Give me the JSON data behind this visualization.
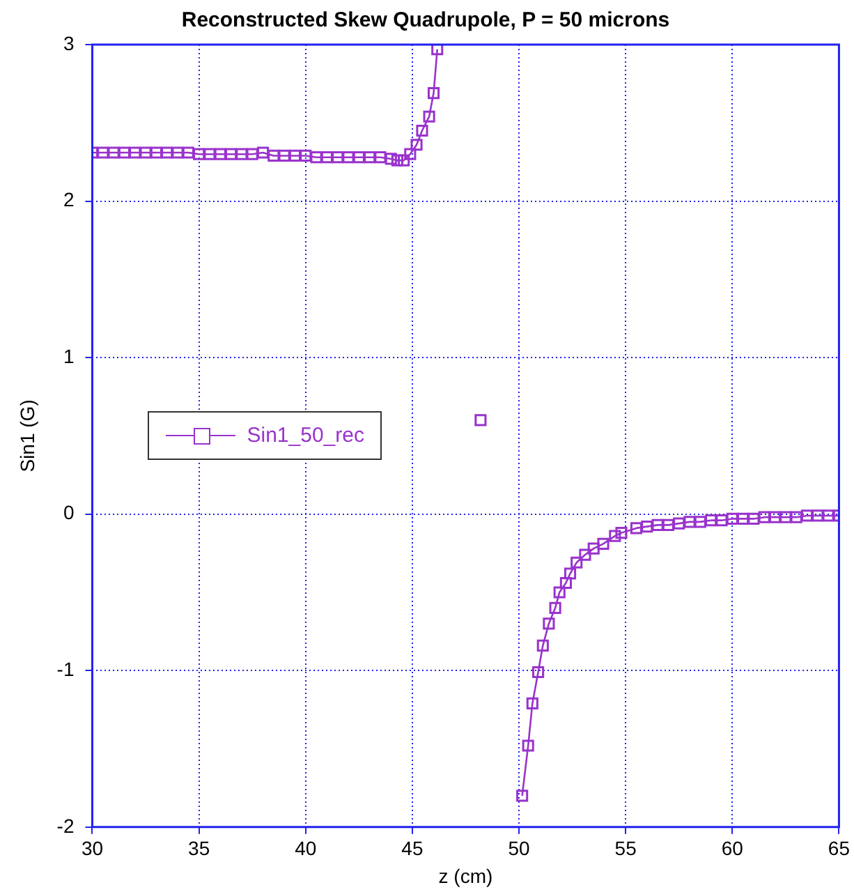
{
  "chart_data": {
    "type": "line",
    "title": "Reconstructed Skew Quadrupole, P = 50 microns",
    "xlabel": "z (cm)",
    "ylabel": "Sin1 (G)",
    "xlim": [
      30,
      65
    ],
    "xticks": [
      30,
      35,
      40,
      45,
      50,
      55,
      60,
      65
    ],
    "ylim": [
      -2,
      3
    ],
    "yticks": [
      -2,
      -1,
      0,
      1,
      2,
      3
    ],
    "grid": true,
    "legend": "left",
    "marker": "square",
    "line_style": "solid",
    "series": [
      {
        "name": "Sin1_50_rec",
        "color": "#9933cc",
        "x": [
          30,
          30.5,
          31,
          31.5,
          32,
          32.5,
          33,
          33.5,
          34,
          34.5,
          35,
          35.5,
          36,
          36.5,
          37,
          37.5,
          38,
          38.5,
          39,
          39.5,
          40,
          40.5,
          41,
          41.5,
          42,
          42.5,
          43,
          43.5,
          44,
          44.3,
          44.6,
          44.9,
          45.2,
          45.46,
          45.79,
          46.0,
          46.17,
          47.0,
          48.2,
          49.2,
          50.15,
          50.43,
          50.63,
          50.9,
          51.12,
          51.4,
          51.7,
          51.9,
          52.2,
          52.4,
          52.7,
          53.1,
          53.5,
          53.95,
          54.5,
          54.8,
          55.5,
          56,
          56.5,
          57,
          57.5,
          58,
          58.5,
          59,
          59.5,
          60,
          60.5,
          61,
          61.5,
          62,
          62.5,
          63,
          63.5,
          64,
          64.5,
          65
        ],
        "values": [
          2.31,
          2.31,
          2.31,
          2.31,
          2.31,
          2.31,
          2.31,
          2.31,
          2.31,
          2.31,
          2.3,
          2.3,
          2.3,
          2.3,
          2.3,
          2.3,
          2.31,
          2.29,
          2.29,
          2.29,
          2.29,
          2.28,
          2.28,
          2.28,
          2.28,
          2.28,
          2.28,
          2.28,
          2.27,
          2.26,
          2.26,
          2.3,
          2.36,
          2.45,
          2.54,
          2.69,
          2.97,
          null,
          0.6,
          null,
          -1.8,
          -1.48,
          -1.21,
          -1.01,
          -0.84,
          -0.7,
          -0.6,
          -0.5,
          -0.44,
          -0.38,
          -0.31,
          -0.26,
          -0.22,
          -0.19,
          -0.14,
          -0.12,
          -0.09,
          -0.08,
          -0.07,
          -0.07,
          -0.06,
          -0.05,
          -0.05,
          -0.04,
          -0.04,
          -0.03,
          -0.03,
          -0.03,
          -0.02,
          -0.02,
          -0.02,
          -0.02,
          -0.01,
          -0.01,
          -0.01,
          -0.01
        ]
      }
    ]
  }
}
